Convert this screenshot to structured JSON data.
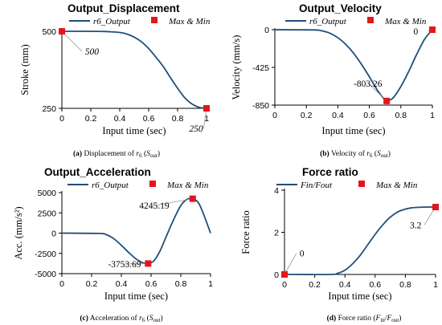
{
  "colors": {
    "series": "#1f4e79",
    "marker": "#e3161b",
    "axis": "#000000",
    "leader": "#999999"
  },
  "chart_data": [
    {
      "type": "line",
      "title": "Output_Displacement",
      "xlabel": "Input time (sec)",
      "ylabel": "Stroke (mm)",
      "xlim": [
        0,
        1
      ],
      "ylim": [
        250,
        500
      ],
      "xticks": [
        "0",
        "0.2",
        "0.4",
        "0.6",
        "0.8",
        "1"
      ],
      "yticks": [
        "250",
        "500"
      ],
      "xtick_values": [
        0,
        0.2,
        0.4,
        0.6,
        0.8,
        1
      ],
      "ytick_values": [
        250,
        500
      ],
      "legend": {
        "line": "r6_Output",
        "marker": "Max & Min"
      },
      "series": [
        {
          "name": "r6_Output",
          "x": [
            0,
            0.25,
            0.35,
            0.4,
            0.45,
            0.5,
            0.55,
            0.6,
            0.65,
            0.7,
            0.75,
            0.8,
            0.85,
            0.9,
            0.95,
            1.0
          ],
          "y": [
            500,
            499.7,
            498,
            496,
            491,
            481,
            466,
            444,
            416,
            386,
            350,
            315,
            284,
            264,
            253,
            250
          ]
        }
      ],
      "markers": [
        {
          "x": 0,
          "y": 500,
          "label": "500",
          "italic": true,
          "lx": 0.16,
          "ly": 425
        },
        {
          "x": 1,
          "y": 250,
          "label": "250",
          "italic": true,
          "lx": 0.88,
          "ly": 175
        }
      ],
      "caption": {
        "tag": "(a)",
        "text": "Displacement of ",
        "sym": "r",
        "sub": "6",
        "paren": "S",
        "psub": "out"
      }
    },
    {
      "type": "line",
      "title": "Output_Velocity",
      "xlabel": "Input time (sec)",
      "ylabel": "Velocity (mm/s)",
      "xlim": [
        0,
        1
      ],
      "ylim": [
        -850,
        0
      ],
      "xticks": [
        "0",
        "0.2",
        "0.4",
        "0.6",
        "0.8",
        "1"
      ],
      "yticks": [
        "-850",
        "-425",
        "0"
      ],
      "xtick_values": [
        0,
        0.2,
        0.4,
        0.6,
        0.8,
        1
      ],
      "ytick_values": [
        -850,
        -425,
        0
      ],
      "legend": {
        "line": "r6_Output",
        "marker": "Max & Min"
      },
      "series": [
        {
          "name": "r6_Output",
          "x": [
            0,
            0.25,
            0.3,
            0.35,
            0.4,
            0.45,
            0.5,
            0.55,
            0.6,
            0.65,
            0.7,
            0.71,
            0.75,
            0.8,
            0.85,
            0.9,
            0.95,
            1.0
          ],
          "y": [
            0,
            -3,
            -14,
            -40,
            -90,
            -165,
            -265,
            -390,
            -530,
            -680,
            -795,
            -803,
            -770,
            -640,
            -470,
            -280,
            -110,
            0
          ]
        }
      ],
      "markers": [
        {
          "x": 1,
          "y": 0,
          "label": "0",
          "italic": false,
          "lx": 0.88,
          "ly": -55
        },
        {
          "x": 0.71,
          "y": -803.26,
          "label": "-803.26",
          "italic": false,
          "lx": 0.5,
          "ly": -640
        }
      ],
      "caption": {
        "tag": "(b)",
        "text": "Velocity of ",
        "sym": "r",
        "sub": "6",
        "paren": "S",
        "psub": "out"
      }
    },
    {
      "type": "line",
      "title": "Output_Acceleration",
      "xlabel": "Input time (sec)",
      "ylabel": "Acc. (mm/s²)",
      "xlim": [
        0,
        1
      ],
      "ylim": [
        -5000,
        5000
      ],
      "xticks": [
        "0",
        "0.2",
        "0.4",
        "0.6",
        "0.8",
        "1"
      ],
      "yticks": [
        "-5000",
        "-2500",
        "0",
        "2500",
        "5000"
      ],
      "xtick_values": [
        0,
        0.2,
        0.4,
        0.6,
        0.8,
        1
      ],
      "ytick_values": [
        -5000,
        -2500,
        0,
        2500,
        5000
      ],
      "legend": {
        "line": "r6_Output",
        "marker": "Max & Min"
      },
      "series": [
        {
          "name": "r6_Output",
          "x": [
            0,
            0.25,
            0.3,
            0.35,
            0.4,
            0.45,
            0.5,
            0.55,
            0.58,
            0.62,
            0.66,
            0.7,
            0.75,
            0.8,
            0.84,
            0.88,
            0.92,
            0.96,
            1.0
          ],
          "y": [
            0,
            -40,
            -200,
            -700,
            -1500,
            -2400,
            -3200,
            -3700,
            -3754,
            -3400,
            -2200,
            -500,
            1600,
            3400,
            4150,
            4245,
            3700,
            2000,
            0
          ]
        }
      ],
      "markers": [
        {
          "x": 0.88,
          "y": 4245.19,
          "label": "4245.19",
          "italic": false,
          "lx": 0.52,
          "ly": 3000
        },
        {
          "x": 0.58,
          "y": -3753.69,
          "label": "-3753.69",
          "italic": false,
          "lx": 0.31,
          "ly": -4200
        }
      ],
      "caption": {
        "tag": "(c)",
        "text": "Acceleration of ",
        "sym": "r",
        "sub": "6",
        "paren": "S",
        "psub": "out"
      }
    },
    {
      "type": "line",
      "title": "Force ratio",
      "xlabel": "Input time (sec)",
      "ylabel": "Force ratio",
      "xlim": [
        0,
        1
      ],
      "ylim": [
        0,
        4
      ],
      "xticks": [
        "0",
        "0.2",
        "0.4",
        "0.6",
        "0.8",
        "1"
      ],
      "yticks": [
        "0",
        "2",
        "4"
      ],
      "xtick_values": [
        0,
        0.2,
        0.4,
        0.6,
        0.8,
        1
      ],
      "ytick_values": [
        0,
        2,
        4
      ],
      "legend": {
        "line": "Fin/Fout",
        "marker": "Max & Min"
      },
      "series": [
        {
          "name": "Fin/Fout",
          "x": [
            0,
            0.3,
            0.35,
            0.4,
            0.45,
            0.5,
            0.55,
            0.6,
            0.65,
            0.7,
            0.75,
            0.8,
            0.85,
            0.9,
            0.95,
            1.0
          ],
          "y": [
            0,
            0,
            0.05,
            0.2,
            0.5,
            0.9,
            1.4,
            1.9,
            2.35,
            2.72,
            2.97,
            3.1,
            3.17,
            3.19,
            3.2,
            3.2
          ]
        }
      ],
      "markers": [
        {
          "x": 0,
          "y": 0,
          "label": "0",
          "italic": false,
          "lx": 0.1,
          "ly": 0.85
        },
        {
          "x": 1,
          "y": 3.2,
          "label": "3.2",
          "italic": false,
          "lx": 0.83,
          "ly": 2.2
        }
      ],
      "caption": {
        "tag": "(d)",
        "text": "Force ratio (",
        "sym": "F",
        "sub": "in",
        "slash": "/F",
        "sub2": "out",
        "close": ")"
      }
    }
  ]
}
